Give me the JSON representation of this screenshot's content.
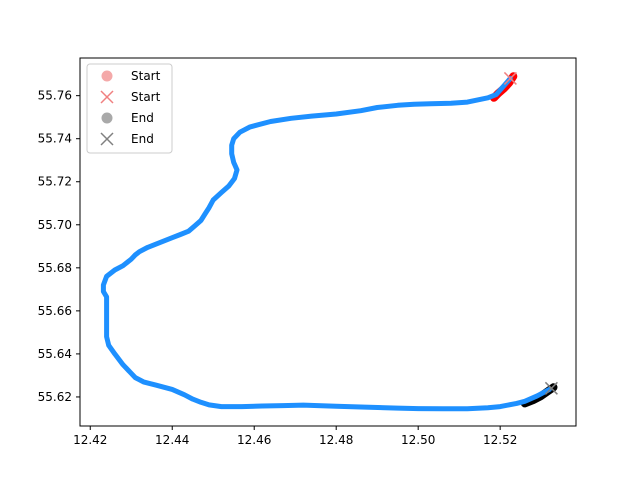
{
  "chart_data": {
    "type": "line",
    "title": "",
    "xlabel": "",
    "ylabel": "",
    "xlim": [
      12.4175,
      12.5385
    ],
    "ylim": [
      55.6065,
      55.7775
    ],
    "xticks": [
      "12.42",
      "12.44",
      "12.46",
      "12.48",
      "12.50",
      "12.52"
    ],
    "yticks": [
      "55.62",
      "55.64",
      "55.66",
      "55.68",
      "55.70",
      "55.72",
      "55.74",
      "55.76"
    ],
    "grid": false,
    "legend_position": "top-left",
    "colors": {
      "route": "#1e90ff",
      "start": "#ff0000",
      "end": "#000000",
      "start_marker": "#f08080",
      "end_marker": "#808080"
    },
    "legend": [
      {
        "label": "Start",
        "marker": "circle",
        "color": "#f4a9a9"
      },
      {
        "label": "Start",
        "marker": "x",
        "color": "#f08080"
      },
      {
        "label": "End",
        "marker": "circle",
        "color": "#a9a9a9"
      },
      {
        "label": "End",
        "marker": "x",
        "color": "#808080"
      }
    ],
    "series": [
      {
        "role": "route",
        "x": [
          12.5225,
          12.519,
          12.517,
          12.512,
          12.508,
          12.503,
          12.499,
          12.495,
          12.49,
          12.486,
          12.48,
          12.474,
          12.469,
          12.464,
          12.459,
          12.4565,
          12.455,
          12.4545,
          12.4545,
          12.455,
          12.4558,
          12.4552,
          12.4538,
          12.452,
          12.45,
          12.449,
          12.448,
          12.447,
          12.4455,
          12.444,
          12.442,
          12.44,
          12.438,
          12.436,
          12.434,
          12.432,
          12.431,
          12.43,
          12.428,
          12.426,
          12.424,
          12.4232,
          12.4232,
          12.424,
          12.424,
          12.424,
          12.424,
          12.4245,
          12.426,
          12.428,
          12.43,
          12.431,
          12.433,
          12.436,
          12.44,
          12.443,
          12.445,
          12.447,
          12.449,
          12.452,
          12.457,
          12.462,
          12.467,
          12.472,
          12.48,
          12.487,
          12.495,
          12.5,
          12.506,
          12.512,
          12.517,
          12.52,
          12.524,
          12.526,
          12.529,
          12.532
        ],
        "y": [
          55.768,
          55.7605,
          55.759,
          55.757,
          55.7565,
          55.7562,
          55.756,
          55.7555,
          55.7545,
          55.753,
          55.7515,
          55.7505,
          55.7495,
          55.748,
          55.7455,
          55.743,
          55.74,
          55.737,
          55.733,
          55.729,
          55.7255,
          55.7215,
          55.718,
          55.715,
          55.7115,
          55.708,
          55.705,
          55.702,
          55.6995,
          55.697,
          55.6955,
          55.694,
          55.6925,
          55.691,
          55.6895,
          55.6875,
          55.686,
          55.684,
          55.681,
          55.679,
          55.676,
          55.672,
          55.669,
          55.6665,
          55.663,
          55.658,
          55.648,
          55.644,
          55.64,
          55.635,
          55.631,
          55.629,
          55.627,
          55.6255,
          55.6235,
          55.621,
          55.619,
          55.6175,
          55.6163,
          55.6155,
          55.6155,
          55.6158,
          55.616,
          55.6162,
          55.6157,
          55.6153,
          55.6148,
          55.6146,
          55.6145,
          55.6145,
          55.615,
          55.6155,
          55.617,
          55.618,
          55.6205,
          55.6235
        ]
      },
      {
        "role": "start",
        "x": [
          12.5185,
          12.5195,
          12.521,
          12.5222,
          12.5232
        ],
        "y": [
          55.759,
          55.761,
          55.7635,
          55.766,
          55.769
        ]
      },
      {
        "role": "end",
        "x": [
          12.526,
          12.528,
          12.53,
          12.5315,
          12.533
        ],
        "y": [
          55.617,
          55.6185,
          55.6205,
          55.6225,
          55.6245
        ]
      }
    ],
    "markers": [
      {
        "label": "Start",
        "marker": "x",
        "x": 12.5225,
        "y": 55.768
      },
      {
        "label": "End",
        "marker": "x",
        "x": 12.5325,
        "y": 55.624
      }
    ]
  }
}
